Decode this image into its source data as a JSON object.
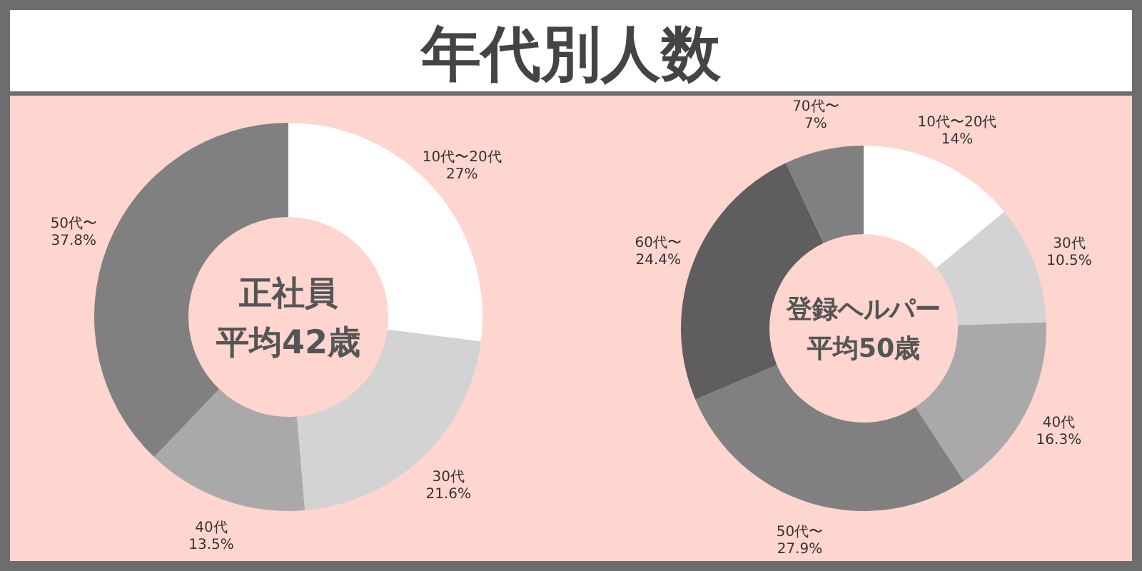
{
  "chart_data": [
    {
      "type": "donut",
      "title": "年代別人数",
      "annotations": [
        "正社員",
        "平均42歳"
      ],
      "categories": [
        "10代〜20代",
        "30代",
        "40代",
        "50代〜"
      ],
      "values": [
        27,
        21.6,
        13.5,
        37.8
      ],
      "value_labels": [
        "27%",
        "21.6%",
        "13.5%",
        "37.8%"
      ],
      "colors": [
        "#ffffff",
        "#d3d3d3",
        "#a9a9a9",
        "#808080"
      ]
    },
    {
      "type": "donut",
      "annotations": [
        "登録ヘルパー",
        "平均50歳"
      ],
      "categories": [
        "10代〜20代",
        "30代",
        "40代",
        "50代〜",
        "60代〜",
        "70代〜"
      ],
      "values": [
        14,
        10.5,
        16.3,
        27.9,
        24.4,
        7
      ],
      "value_labels": [
        "14%",
        "10.5%",
        "16.3%",
        "27.9%",
        "24.4%",
        "7%"
      ],
      "colors": [
        "#ffffff",
        "#d3d3d3",
        "#a9a9a9",
        "#808080",
        "#5e5e5e",
        "#808080"
      ]
    }
  ]
}
